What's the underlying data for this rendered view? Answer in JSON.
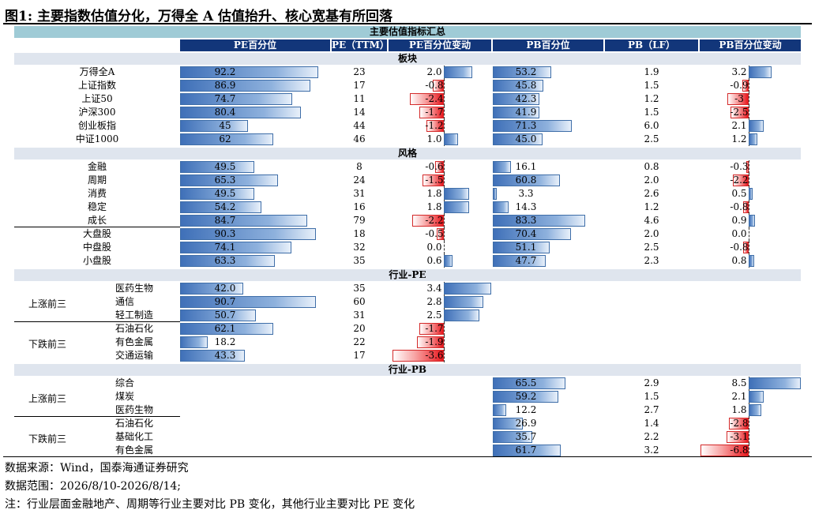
{
  "figure_title": "图1:  主要指数估值分化，万得全 A 估值抬升、核心宽基有所回落",
  "table_title": "主要估值指标汇总",
  "columns": [
    "PE百分位",
    "PE（TTM）",
    "PE百分位变动",
    "PB百分位",
    "PB（LF）",
    "PB百分位变动"
  ],
  "sections": [
    {
      "title": "板块",
      "rows": [
        {
          "name": "万得全A",
          "pe_pct": "92.2",
          "pe": "23",
          "pe_chg": "2.0",
          "pb_pct": "53.2",
          "pb": "1.9",
          "pb_chg": "3.2"
        },
        {
          "name": "上证指数",
          "pe_pct": "86.9",
          "pe": "17",
          "pe_chg": "-0.8",
          "pb_pct": "45.8",
          "pb": "1.5",
          "pb_chg": "-0.9"
        },
        {
          "name": "上证50",
          "pe_pct": "74.7",
          "pe": "11",
          "pe_chg": "-2.4",
          "pb_pct": "42.3",
          "pb": "1.2",
          "pb_chg": "-3"
        },
        {
          "name": "沪深300",
          "pe_pct": "80.4",
          "pe": "14",
          "pe_chg": "-1.7",
          "pb_pct": "41.9",
          "pb": "1.5",
          "pb_chg": "-2.5"
        },
        {
          "name": "创业板指",
          "pe_pct": "45",
          "pe": "44",
          "pe_chg": "-1.2",
          "pb_pct": "71.3",
          "pb": "6.0",
          "pb_chg": "2.1"
        },
        {
          "name": "中证1000",
          "pe_pct": "62",
          "pe": "46",
          "pe_chg": "1.0",
          "pb_pct": "45.0",
          "pb": "2.5",
          "pb_chg": "1.2"
        }
      ]
    },
    {
      "title": "风格",
      "rows": [
        {
          "name": "金融",
          "pe_pct": "49.5",
          "pe": "8",
          "pe_chg": "-0.6",
          "pb_pct": "16.1",
          "pb": "0.8",
          "pb_chg": "-0.3"
        },
        {
          "name": "周期",
          "pe_pct": "65.3",
          "pe": "24",
          "pe_chg": "-1.5",
          "pb_pct": "60.8",
          "pb": "2.0",
          "pb_chg": "-2.2"
        },
        {
          "name": "消费",
          "pe_pct": "49.5",
          "pe": "31",
          "pe_chg": "1.8",
          "pb_pct": "3.3",
          "pb": "2.6",
          "pb_chg": "0.5"
        },
        {
          "name": "稳定",
          "pe_pct": "54.2",
          "pe": "16",
          "pe_chg": "1.8",
          "pb_pct": "14.3",
          "pb": "1.2",
          "pb_chg": "-0.8"
        },
        {
          "name": "成长",
          "pe_pct": "84.7",
          "pe": "79",
          "pe_chg": "-2.2",
          "pb_pct": "83.3",
          "pb": "4.6",
          "pb_chg": "0.9"
        },
        {
          "name": "大盘股",
          "pe_pct": "90.3",
          "pe": "18",
          "pe_chg": "-0.5",
          "pb_pct": "70.4",
          "pb": "2.0",
          "pb_chg": "0.0"
        },
        {
          "name": "中盘股",
          "pe_pct": "74.1",
          "pe": "32",
          "pe_chg": "0.0",
          "pb_pct": "51.1",
          "pb": "2.5",
          "pb_chg": "-0.8"
        },
        {
          "name": "小盘股",
          "pe_pct": "63.3",
          "pe": "35",
          "pe_chg": "0.6",
          "pb_pct": "47.7",
          "pb": "2.3",
          "pb_chg": "0.8"
        }
      ]
    },
    {
      "title": "行业-PE",
      "groups": [
        "上涨前三",
        "下跌前三"
      ],
      "rows": [
        {
          "group": 0,
          "name": "医药生物",
          "pe_pct": "42.0",
          "pe": "35",
          "pe_chg": "3.4"
        },
        {
          "group": 0,
          "name": "通信",
          "pe_pct": "90.7",
          "pe": "60",
          "pe_chg": "2.8"
        },
        {
          "group": 0,
          "name": "轻工制造",
          "pe_pct": "50.7",
          "pe": "31",
          "pe_chg": "2.5"
        },
        {
          "group": 1,
          "name": "石油石化",
          "pe_pct": "62.1",
          "pe": "20",
          "pe_chg": "-1.7"
        },
        {
          "group": 1,
          "name": "有色金属",
          "pe_pct": "18.2",
          "pe": "22",
          "pe_chg": "-1.9"
        },
        {
          "group": 1,
          "name": "交通运输",
          "pe_pct": "43.3",
          "pe": "17",
          "pe_chg": "-3.6"
        }
      ]
    },
    {
      "title": "行业-PB",
      "groups": [
        "上涨前三",
        "下跌前三"
      ],
      "rows": [
        {
          "group": 0,
          "name": "综合",
          "pb_pct": "65.5",
          "pb": "2.9",
          "pb_chg": "8.5"
        },
        {
          "group": 0,
          "name": "煤炭",
          "pb_pct": "59.2",
          "pb": "1.5",
          "pb_chg": "2.1"
        },
        {
          "group": 0,
          "name": "医药生物",
          "pb_pct": "12.2",
          "pb": "2.7",
          "pb_chg": "1.8"
        },
        {
          "group": 1,
          "name": "石油石化",
          "pb_pct": "26.9",
          "pb": "1.4",
          "pb_chg": "-2.8"
        },
        {
          "group": 1,
          "name": "基础化工",
          "pb_pct": "35.7",
          "pb": "2.2",
          "pb_chg": "-3.1"
        },
        {
          "group": 1,
          "name": "有色金属",
          "pb_pct": "61.7",
          "pb": "3.2",
          "pb_chg": "-6.8"
        }
      ]
    }
  ],
  "notes": [
    "数据来源：Wind，国泰海通证券研究",
    "数据范围：2026/8/10-2026/8/14;",
    "注：行业层面金融地产、周期等行业主要对比 PB 变化，其他行业主要对比 PE 变化"
  ]
}
